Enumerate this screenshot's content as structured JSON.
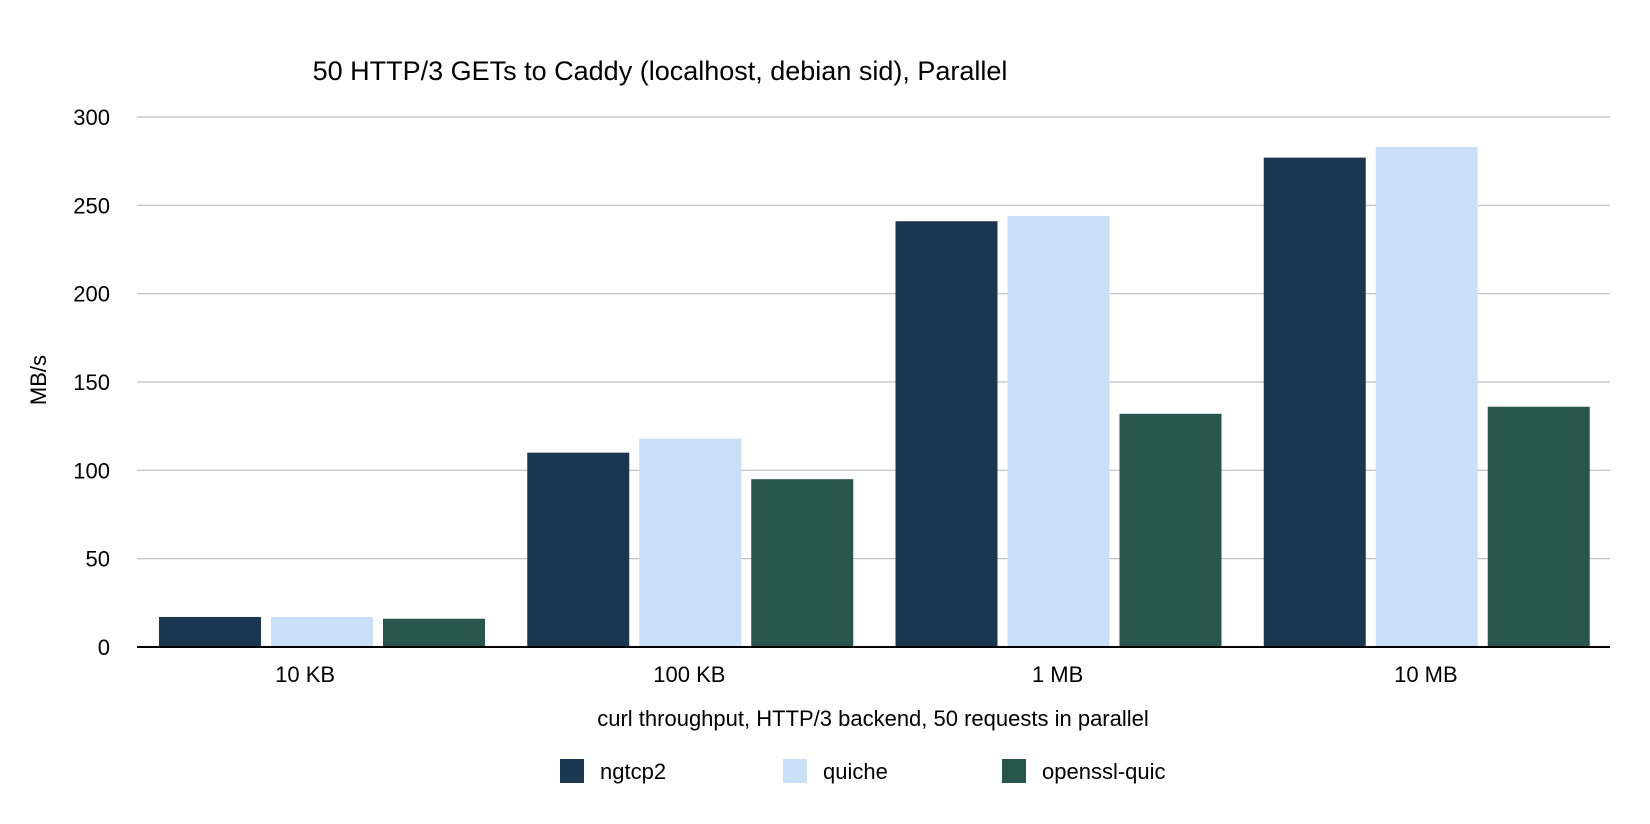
{
  "chart_data": {
    "type": "bar",
    "title": "50 HTTP/3 GETs to Caddy (localhost, debian sid), Parallel",
    "xlabel": "curl throughput, HTTP/3 backend, 50 requests in parallel",
    "ylabel": "MB/s",
    "categories": [
      "10 KB",
      "100 KB",
      "1 MB",
      "10 MB"
    ],
    "ylim": [
      0,
      300
    ],
    "yticks": [
      0,
      50,
      100,
      150,
      200,
      250,
      300
    ],
    "grid": true,
    "legend_position": "bottom",
    "series": [
      {
        "name": "ngtcp2",
        "color": "#1a3650",
        "values": [
          17,
          110,
          241,
          277
        ]
      },
      {
        "name": "quiche",
        "color": "#c9dff8",
        "values": [
          17,
          118,
          244,
          283
        ]
      },
      {
        "name": "openssl-quic",
        "color": "#28554e",
        "values": [
          16,
          95,
          132,
          136
        ]
      }
    ]
  }
}
